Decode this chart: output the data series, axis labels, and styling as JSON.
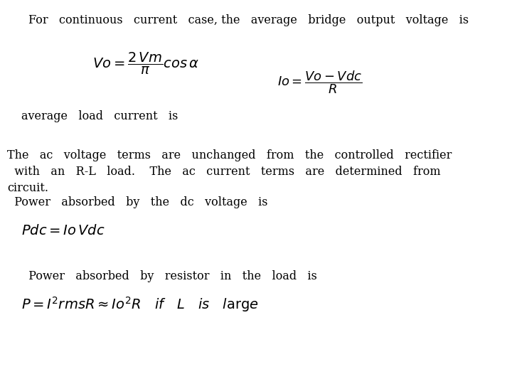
{
  "background_color": "#ffffff",
  "line1": "For   continuous   current   case, the   average   bridge   output   voltage   is",
  "line2": "average   load   current   is",
  "line3a": "The   ac   voltage   terms   are   unchanged   from   the   controlled   rectifier",
  "line3b": "  with   an   R-L   load.    The   ac   current   terms   are   determined   from",
  "line3c": "circuit.",
  "line4": "  Power   absorbed   by   the   dc   voltage   is",
  "line5": "  Power   absorbed   by   resistor   in   the   load   is",
  "text_fontsize": 11.5,
  "formula_fontsize": 13
}
